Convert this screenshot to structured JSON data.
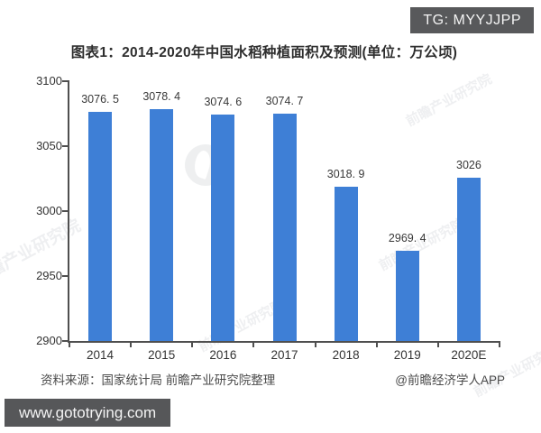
{
  "badge": {
    "text": "TG: MYYJJPP"
  },
  "title": "图表1：2014-2020年中国水稻种植面积及预测(单位：万公顷)",
  "chart_data": {
    "type": "bar",
    "categories": [
      "2014",
      "2015",
      "2016",
      "2017",
      "2018",
      "2019",
      "2020E"
    ],
    "values": [
      3076.5,
      3078.4,
      3074.6,
      3074.7,
      3018.9,
      2969.4,
      3026
    ],
    "labels": [
      "3076. 5",
      "3078. 4",
      "3074. 6",
      "3074. 7",
      "3018. 9",
      "2969. 4",
      "3026"
    ],
    "title": "图表1：2014-2020年中国水稻种植面积及预测(单位：万公顷)",
    "xlabel": "",
    "ylabel": "",
    "ylim": [
      2900,
      3100
    ],
    "yticks": [
      3100,
      3050,
      3000,
      2950,
      2900
    ],
    "grid": false,
    "legend": "none",
    "bar_color": "#3e7fd6",
    "axis_color": "#4f4f4f"
  },
  "footer": {
    "source": "资料来源：国家统计局 前瞻产业研究院整理",
    "credit": "@前瞻经济学人APP"
  },
  "banner": {
    "text": "www.gototrying.com"
  },
  "watermark": {
    "text": "前瞻产业研究院"
  }
}
